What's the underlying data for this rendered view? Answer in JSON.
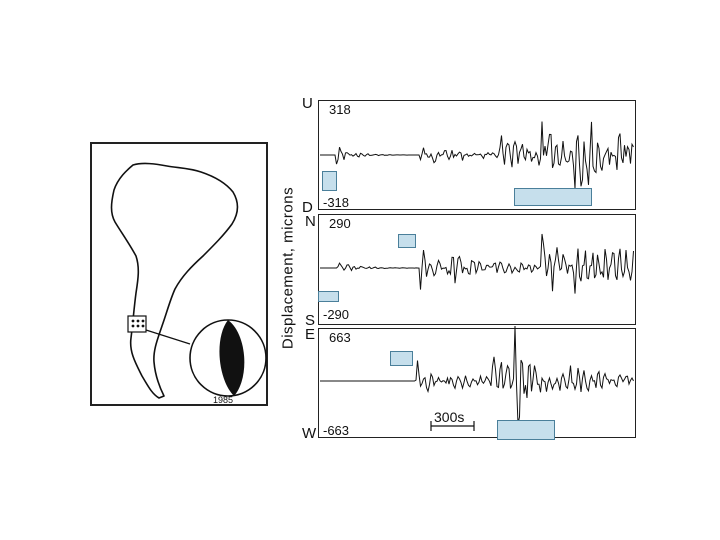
{
  "year_label": "1985",
  "y_axis_label": "Displacement, microns",
  "time_scale_label": "300s",
  "traces": [
    {
      "top_letter": "U",
      "bottom_letter": "D",
      "max_label": "318",
      "min_label": "-318"
    },
    {
      "top_letter": "N",
      "bottom_letter": "S",
      "max_label": "290",
      "min_label": "-290"
    },
    {
      "top_letter": "E",
      "bottom_letter": "W",
      "max_label": "663",
      "min_label": "-663"
    }
  ],
  "colors": {
    "line": "#111111",
    "mask_fill": "#c6dfec",
    "mask_border": "#4a7f9a",
    "beachball_fill": "#111111"
  }
}
